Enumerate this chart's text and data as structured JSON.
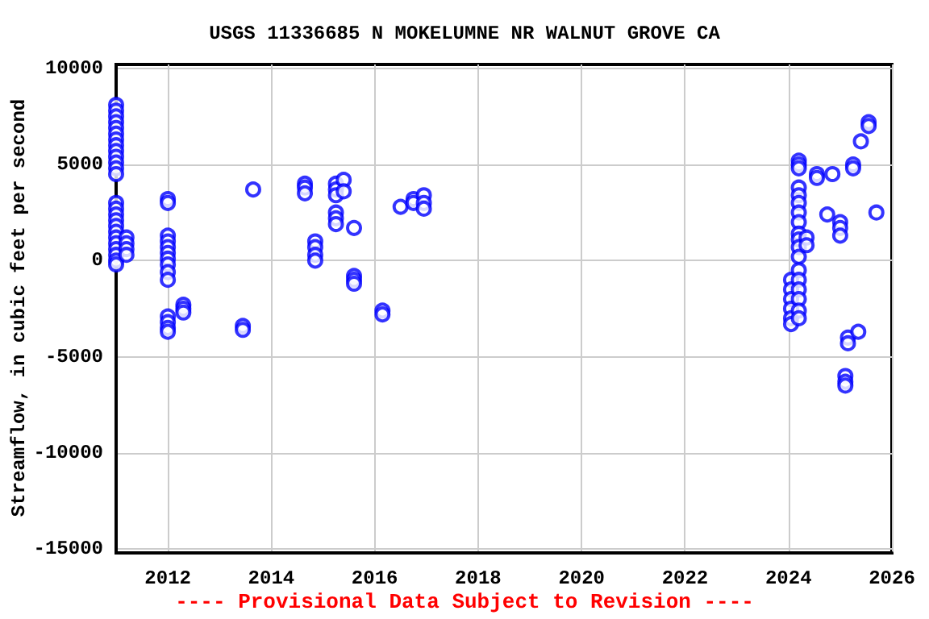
{
  "chart_data": {
    "type": "scatter",
    "title": "USGS 11336685 N MOKELUMNE NR WALNUT GROVE CA",
    "ylabel": "Streamflow, in cubic feet per second",
    "annotations": [
      "---- Provisional Data Subject to Revision ----"
    ],
    "x": [
      2011.0,
      2011.0,
      2011.0,
      2011.0,
      2011.0,
      2011.0,
      2011.0,
      2011.0,
      2011.0,
      2011.0,
      2011.0,
      2011.0,
      2011.0,
      2011.0,
      2011.0,
      2011.0,
      2011.0,
      2011.0,
      2011.0,
      2011.0,
      2011.0,
      2011.0,
      2011.0,
      2011.0,
      2011.0,
      2011.2,
      2011.2,
      2011.2,
      2011.2,
      2012.0,
      2012.0,
      2012.0,
      2012.0,
      2012.0,
      2012.0,
      2012.0,
      2012.0,
      2012.0,
      2012.0,
      2012.0,
      2012.0,
      2012.0,
      2012.0,
      2012.3,
      2012.3,
      2012.3,
      2013.45,
      2013.45,
      2013.65,
      2014.65,
      2014.65,
      2014.65,
      2014.85,
      2014.85,
      2014.85,
      2014.85,
      2015.25,
      2015.25,
      2015.25,
      2015.25,
      2015.25,
      2015.25,
      2015.4,
      2015.4,
      2015.6,
      2015.6,
      2015.6,
      2015.6,
      2016.15,
      2016.15,
      2016.5,
      2016.75,
      2016.75,
      2016.95,
      2016.95,
      2016.95,
      2024.05,
      2024.05,
      2024.05,
      2024.05,
      2024.05,
      2024.05,
      2024.2,
      2024.2,
      2024.2,
      2024.2,
      2024.2,
      2024.2,
      2024.2,
      2024.2,
      2024.2,
      2024.2,
      2024.2,
      2024.2,
      2024.2,
      2024.2,
      2024.2,
      2024.2,
      2024.2,
      2024.2,
      2024.35,
      2024.35,
      2024.55,
      2024.55,
      2024.75,
      2024.85,
      2025.0,
      2025.0,
      2025.0,
      2025.1,
      2025.1,
      2025.1,
      2025.15,
      2025.15,
      2025.25,
      2025.25,
      2025.35,
      2025.4,
      2025.55,
      2025.55,
      2025.7
    ],
    "series": [
      {
        "color": "#0000ff",
        "values": [
          8100,
          7800,
          7500,
          7200,
          6900,
          6600,
          6300,
          6000,
          5700,
          5400,
          5100,
          4800,
          4500,
          3000,
          2700,
          2400,
          2100,
          1800,
          1500,
          1200,
          900,
          600,
          300,
          0,
          -200,
          1200,
          900,
          600,
          300,
          3200,
          3000,
          1300,
          1000,
          700,
          400,
          100,
          -200,
          -600,
          -1000,
          -2900,
          -3200,
          -3500,
          -3700,
          -2300,
          -2500,
          -2700,
          -3400,
          -3600,
          3700,
          4000,
          3800,
          3500,
          1000,
          700,
          300,
          0,
          4000,
          3700,
          3400,
          2500,
          2200,
          1900,
          4200,
          3600,
          1700,
          -800,
          -1000,
          -1200,
          -2600,
          -2800,
          2800,
          3200,
          3000,
          3400,
          3000,
          2700,
          -1000,
          -1500,
          -2000,
          -2500,
          -3000,
          -3300,
          5200,
          5000,
          4800,
          3800,
          3400,
          3000,
          2500,
          2000,
          1400,
          1100,
          700,
          200,
          -500,
          -1000,
          -1500,
          -2000,
          -2600,
          -3000,
          1200,
          800,
          4500,
          4300,
          2400,
          4500,
          2000,
          1700,
          1300,
          -6000,
          -6300,
          -6500,
          -4000,
          -4300,
          5000,
          4800,
          -3700,
          6200,
          7200,
          7000,
          2500
        ]
      }
    ],
    "xlim": [
      2011,
      2026
    ],
    "xticks": [
      2012,
      2014,
      2016,
      2018,
      2020,
      2022,
      2024,
      2026
    ],
    "ylim": [
      -15200,
      10200
    ],
    "yticks": [
      -15000,
      -10000,
      -5000,
      0,
      5000,
      10000
    ],
    "grid": true,
    "marker": "circle"
  }
}
